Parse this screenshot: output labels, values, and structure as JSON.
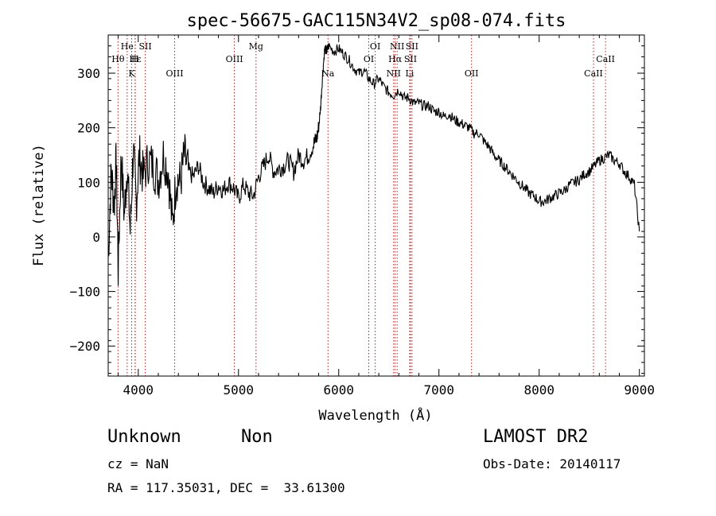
{
  "chart_data": {
    "type": "line",
    "title": "spec-56675-GAC115N34V2_sp08-074.fits",
    "xlabel": "Wavelength (Å)",
    "ylabel": "Flux (relative)",
    "xlim": [
      3700,
      9050
    ],
    "ylim": [
      -255,
      370
    ],
    "xticks": [
      4000,
      5000,
      6000,
      7000,
      8000,
      9000
    ],
    "yticks": [
      -200,
      -100,
      0,
      100,
      200,
      300
    ],
    "xtick_labels": [
      "4000",
      "5000",
      "6000",
      "7000",
      "8000",
      "9000"
    ],
    "ytick_labels": [
      "−200",
      "−100",
      "0",
      "100",
      "200",
      "300"
    ],
    "line_color": "#000000",
    "marker_color": "#aa2222",
    "series": [
      {
        "x": [
          3700,
          3730,
          3760,
          3780,
          3800,
          3830,
          3860,
          3890,
          3920,
          3950,
          3980,
          4010,
          4050,
          4100,
          4150,
          4200,
          4250,
          4300,
          4340,
          4380,
          4420,
          4460,
          4500,
          4550,
          4600,
          4650,
          4700,
          4750,
          4800,
          4850,
          4900,
          4950,
          5000,
          5050,
          5100,
          5150,
          5200,
          5250,
          5300,
          5350,
          5400,
          5450,
          5500,
          5550,
          5600,
          5650,
          5700,
          5750,
          5780,
          5800,
          5820,
          5840,
          5860,
          5880,
          5900,
          5950,
          6000,
          6050,
          6100,
          6150,
          6200,
          6250,
          6300,
          6350,
          6400,
          6450,
          6500,
          6550,
          6600,
          6650,
          6700,
          6750,
          6800,
          6850,
          6900,
          6950,
          7000,
          7050,
          7100,
          7150,
          7200,
          7250,
          7300,
          7350,
          7400,
          7450,
          7500,
          7550,
          7600,
          7650,
          7700,
          7750,
          7800,
          7850,
          7900,
          7950,
          8000,
          8050,
          8100,
          8150,
          8200,
          8250,
          8300,
          8350,
          8400,
          8450,
          8500,
          8550,
          8600,
          8650,
          8700,
          8750,
          8800,
          8850,
          8900,
          8950,
          9000
        ],
        "y": [
          -40,
          120,
          60,
          140,
          -60,
          150,
          40,
          130,
          10,
          160,
          60,
          150,
          110,
          140,
          130,
          105,
          150,
          120,
          20,
          110,
          100,
          150,
          120,
          110,
          130,
          100,
          90,
          80,
          95,
          85,
          100,
          90,
          70,
          95,
          80,
          75,
          110,
          130,
          150,
          120,
          125,
          130,
          140,
          120,
          150,
          140,
          150,
          170,
          180,
          200,
          240,
          300,
          345,
          340,
          350,
          340,
          345,
          335,
          325,
          310,
          300,
          305,
          290,
          280,
          290,
          275,
          265,
          260,
          270,
          255,
          255,
          245,
          245,
          240,
          240,
          230,
          230,
          220,
          225,
          215,
          210,
          205,
          200,
          190,
          190,
          175,
          165,
          150,
          140,
          130,
          120,
          110,
          100,
          90,
          80,
          75,
          65,
          65,
          70,
          75,
          80,
          85,
          95,
          100,
          105,
          115,
          120,
          130,
          140,
          145,
          150,
          140,
          135,
          120,
          110,
          95,
          10
        ]
      }
    ],
    "spectral_lines": [
      {
        "name": "Hε",
        "x": 3970,
        "row": 2
      },
      {
        "name": "Hθ",
        "x": 3798,
        "row": 2
      },
      {
        "name": "He",
        "x": 3889,
        "row": 1
      },
      {
        "name": "SII",
        "x": 4070,
        "row": 1
      },
      {
        "name": "H",
        "x": 3968,
        "row": 2
      },
      {
        "name": "K",
        "x": 3934,
        "row": 3
      },
      {
        "name": "OIII",
        "x": 4363,
        "row": 3
      },
      {
        "name": "OIII",
        "x": 4959,
        "row": 2
      },
      {
        "name": "Mg",
        "x": 5175,
        "row": 1
      },
      {
        "name": "Na",
        "x": 5893,
        "row": 3
      },
      {
        "name": "OI",
        "x": 6300,
        "row": 2
      },
      {
        "name": "OI",
        "x": 6364,
        "row": 1
      },
      {
        "name": "NII",
        "x": 6548,
        "row": 3
      },
      {
        "name": "NII",
        "x": 6583,
        "row": 1
      },
      {
        "name": "Hα",
        "x": 6563,
        "row": 2
      },
      {
        "name": "SII",
        "x": 6716,
        "row": 2
      },
      {
        "name": "SII",
        "x": 6731,
        "row": 1
      },
      {
        "name": "Li",
        "x": 6708,
        "row": 3
      },
      {
        "name": "OII",
        "x": 7325,
        "row": 3
      },
      {
        "name": "CaII",
        "x": 8542,
        "row": 3
      },
      {
        "name": "CaII",
        "x": 8662,
        "row": 2
      }
    ]
  },
  "info": {
    "class": "Unknown",
    "subclass": "Non",
    "survey": "LAMOST DR2",
    "cz": "cz = NaN",
    "obs_date": "Obs-Date: 20140117",
    "coords": "RA = 117.35031, DEC =  33.61300"
  }
}
